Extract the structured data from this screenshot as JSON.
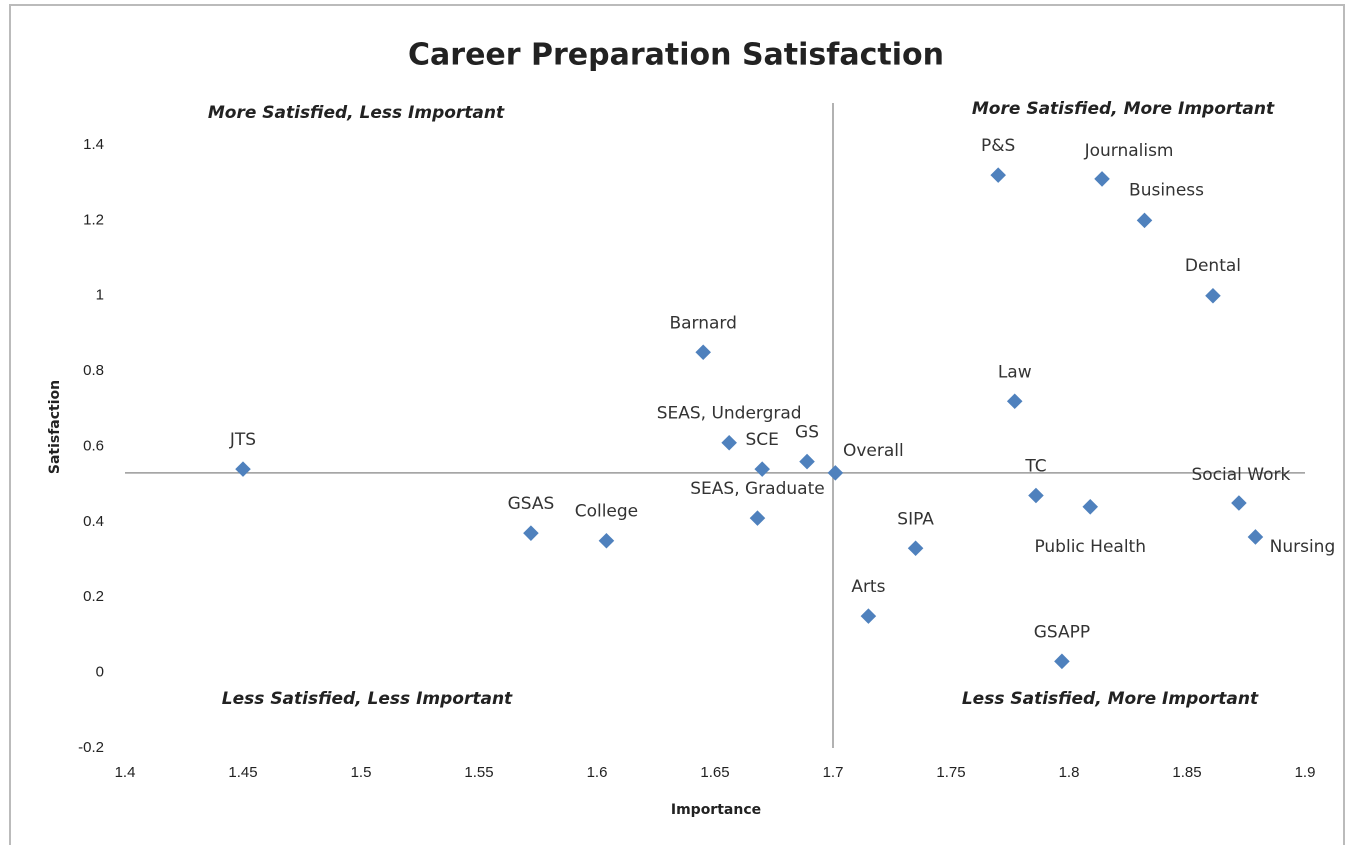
{
  "chart_data": {
    "type": "scatter",
    "title": "Career Preparation Satisfaction",
    "x_label": "Importance",
    "y_label": "Satisfaction",
    "labels": [
      "JTS",
      "GSAS",
      "College",
      "Barnard",
      "SEAS, Undergrad",
      "SCE",
      "GS",
      "SEAS, Graduate",
      "Overall",
      "SIPA",
      "Arts",
      "GSAPP",
      "TC",
      "Public Health",
      "Law",
      "P&S",
      "Journalism",
      "Business",
      "Dental",
      "Social Work",
      "Nursing"
    ],
    "x": [
      1.45,
      1.572,
      1.604,
      1.645,
      1.656,
      1.67,
      1.689,
      1.668,
      1.701,
      1.735,
      1.715,
      1.797,
      1.786,
      1.809,
      1.777,
      1.77,
      1.814,
      1.832,
      1.861,
      1.872,
      1.879
    ],
    "values": [
      0.54,
      0.37,
      0.35,
      0.85,
      0.61,
      0.54,
      0.56,
      0.41,
      0.53,
      0.33,
      0.15,
      0.03,
      0.47,
      0.44,
      0.72,
      1.32,
      1.31,
      1.2,
      1.0,
      0.45,
      0.36
    ],
    "color": "#4f81bd",
    "quadrant_x": 1.7,
    "quadrant_y": 0.53,
    "quadrant_labels": [
      "More Satisfied, Less Important",
      "More Satisfied, More Important",
      "Less Satisfied, Less Important",
      "Less Satisfied, More Important"
    ],
    "xlim": [
      1.4,
      1.9
    ],
    "xticks": [
      1.4,
      1.45,
      1.5,
      1.55,
      1.6,
      1.65,
      1.7,
      1.75,
      1.8,
      1.85,
      1.9
    ],
    "ylim": [
      -0.2,
      1.4
    ],
    "yticks": [
      -0.2,
      0,
      0.2,
      0.4,
      0.6,
      0.8,
      1,
      1.2,
      1.4
    ],
    "grid": false
  }
}
